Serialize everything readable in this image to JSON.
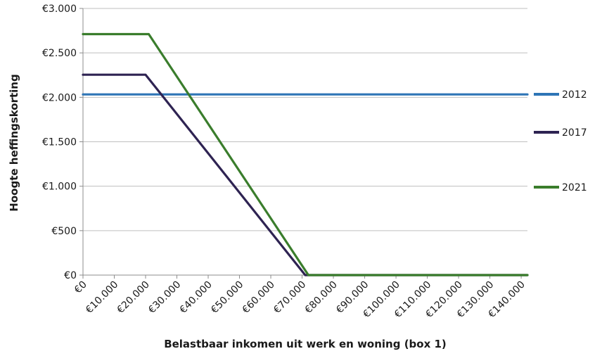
{
  "chart_data": {
    "type": "line",
    "xlabel": "Belastbaar inkomen uit werk en woning (box 1)",
    "ylabel": "Hoogte heffingskorting",
    "x_ticks": [
      0,
      10000,
      20000,
      30000,
      40000,
      50000,
      60000,
      70000,
      80000,
      90000,
      100000,
      110000,
      120000,
      130000,
      140000
    ],
    "x_tick_labels": [
      "€0",
      "€10.000",
      "€20.000",
      "€30.000",
      "€40.000",
      "€50.000",
      "€60.000",
      "€70.000",
      "€80.000",
      "€90.000",
      "€100.000",
      "€110.000",
      "€120.000",
      "€130.000",
      "€140.000"
    ],
    "y_ticks": [
      0,
      500,
      1000,
      1500,
      2000,
      2500,
      3000
    ],
    "y_tick_labels": [
      "€0",
      "€500",
      "€1.000",
      "€1.500",
      "€2.000",
      "€2.500",
      "€3.000"
    ],
    "xlim": [
      0,
      142000
    ],
    "ylim": [
      0,
      3000
    ],
    "grid": "horizontal",
    "legend_position": "right",
    "series": [
      {
        "name": "2012",
        "color": "#2e75b6",
        "x": [
          0,
          142000
        ],
        "y": [
          2033,
          2033
        ]
      },
      {
        "name": "2017",
        "color": "#2e2352",
        "x": [
          0,
          20000,
          71000,
          142000
        ],
        "y": [
          2254,
          2254,
          0,
          0
        ]
      },
      {
        "name": "2021",
        "color": "#3a7d2c",
        "x": [
          0,
          21000,
          72000,
          142000
        ],
        "y": [
          2711,
          2711,
          0,
          0
        ]
      }
    ]
  }
}
